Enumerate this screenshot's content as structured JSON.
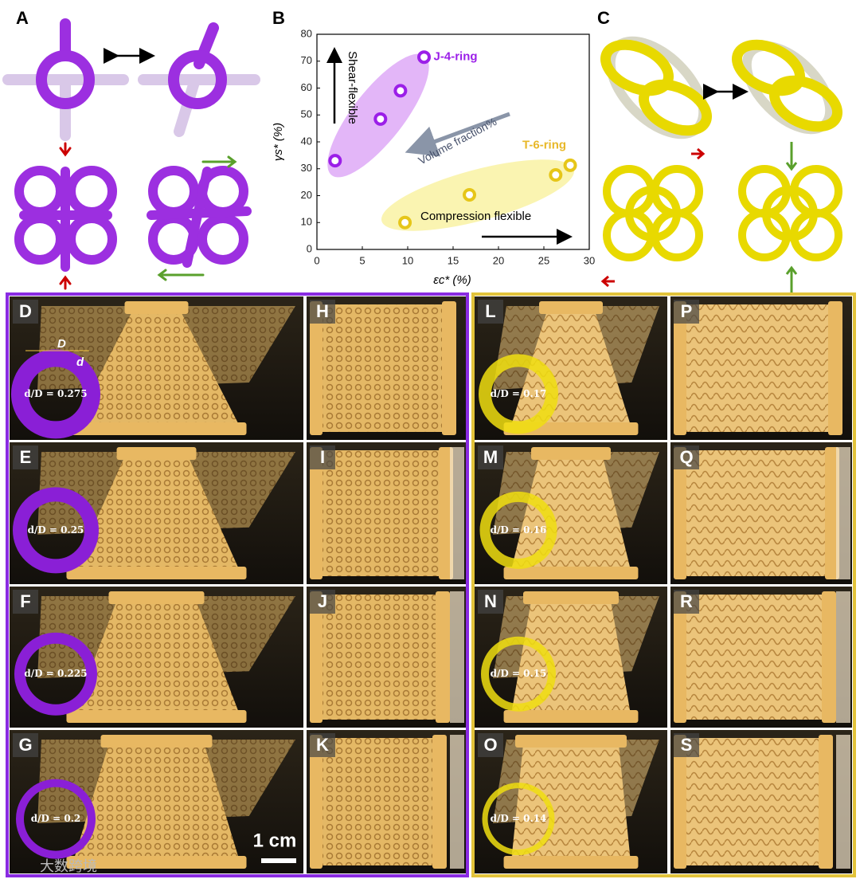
{
  "panel_labels": [
    "A",
    "B",
    "C",
    "D",
    "E",
    "F",
    "G",
    "H",
    "I",
    "J",
    "K",
    "L",
    "M",
    "N",
    "O",
    "P",
    "Q",
    "R",
    "S"
  ],
  "ratio_labels": [
    "d/D = 0.275",
    "d/D = 0.25",
    "d/D = 0.225",
    "d/D = 0.2",
    "d/D = 0.17",
    "d/D = 0.16",
    "d/D = 0.15",
    "d/D = 0.14"
  ],
  "dimension_labels": [
    "D",
    "d"
  ],
  "scale_bar": "1 cm",
  "watermark": "大数跨境",
  "chart_data": {
    "type": "scatter",
    "x_label": "εc* (%)",
    "y_label": "γs* (%)",
    "xlim": [
      0,
      30
    ],
    "xticks": [
      0,
      5,
      10,
      15,
      20,
      25,
      30
    ],
    "ylim": [
      0,
      80
    ],
    "yticks": [
      0,
      10,
      20,
      30,
      40,
      50,
      60,
      70,
      80
    ],
    "series": [
      {
        "name": "J-4-ring",
        "color": "#9b1fe8",
        "x": [
          2,
          7,
          9.2,
          11.8
        ],
        "values": [
          33,
          48.5,
          59,
          71.5
        ]
      },
      {
        "name": "T-6-ring",
        "color": "#e6c619",
        "x": [
          9.7,
          16.8,
          26.3,
          27.9
        ],
        "values": [
          10,
          20.3,
          27.7,
          31.3
        ]
      }
    ],
    "annotations": [
      "Shear-flexible",
      "Volume fraction%",
      "Compression flexible"
    ]
  }
}
